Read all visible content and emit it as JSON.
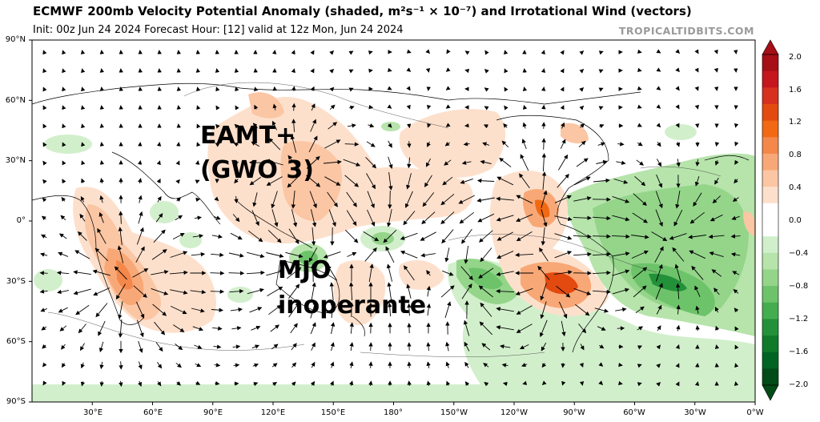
{
  "header": {
    "title": "ECMWF 200mb Velocity Potential Anomaly (shaded, m²s⁻¹ × 10⁻⁷) and Irrotational Wind (vectors)",
    "subtitle": "Init: 00z Jun 24 2024   Forecast Hour: [12]   valid at 12z Mon, Jun 24 2024",
    "brand": "TROPICALTIDBITS.COM"
  },
  "map": {
    "lat_labels": [
      "90°N",
      "60°N",
      "30°N",
      "0°",
      "30°S",
      "60°S",
      "90°S"
    ],
    "lon_labels": [
      "30°E",
      "60°E",
      "90°E",
      "120°E",
      "150°E",
      "180°",
      "150°W",
      "120°W",
      "90°W",
      "60°W",
      "30°W",
      "0°W"
    ]
  },
  "colorbar": {
    "labels": [
      "2.0",
      "1.6",
      "1.2",
      "0.8",
      "0.4",
      "0.0",
      "−0.4",
      "−0.8",
      "−1.2",
      "−1.6",
      "−2.0"
    ],
    "colors": [
      "#a50f15",
      "#c4161c",
      "#d7301f",
      "#e34a0f",
      "#f16913",
      "#f4874a",
      "#f8a876",
      "#fbc6a4",
      "#fde0cc",
      "#ffffff",
      "#ffffff",
      "#d2efcc",
      "#b6e4ab",
      "#94d58a",
      "#6dc36a",
      "#44ad4f",
      "#239139",
      "#0f7a2a",
      "#006422",
      "#004b16"
    ]
  },
  "annotations": {
    "eamt": "EAMT+",
    "gwo": "(GWO 3)",
    "mjo": "MJO",
    "inoperante": "inoperante"
  }
}
